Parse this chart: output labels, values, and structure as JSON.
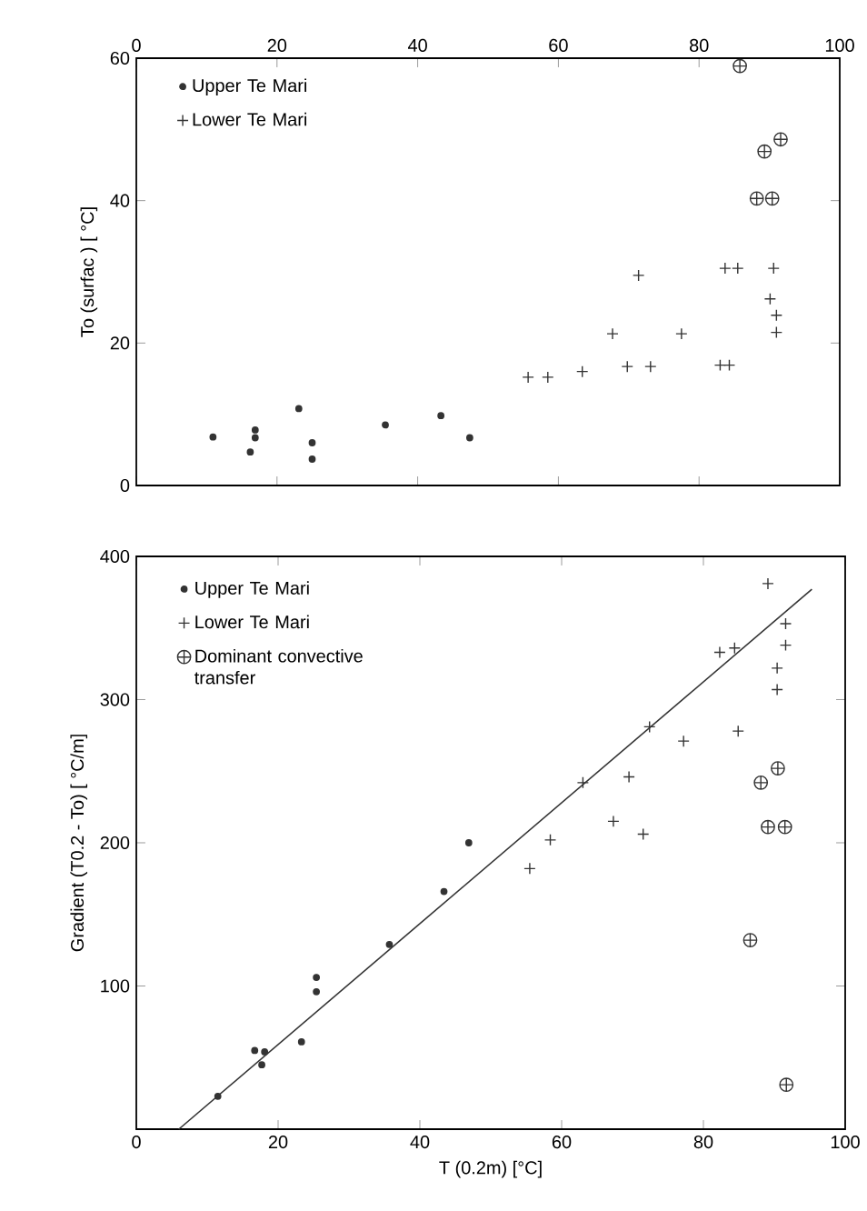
{
  "chart_data": [
    {
      "type": "scatter",
      "ylabel": "To (surfac ) [ °C]",
      "xlim": [
        0,
        100
      ],
      "ylim": [
        0,
        60
      ],
      "xticks": [
        0,
        20,
        40,
        60,
        80,
        100
      ],
      "yticks": [
        0,
        20,
        40,
        60
      ],
      "legend": "top left",
      "series": [
        {
          "name": "Upper Te Mari",
          "color": "#333333",
          "marker": "circle",
          "x": [
            10.9,
            16.2,
            16.9,
            16.9,
            23.1,
            25.0,
            25.0,
            35.4,
            43.3,
            47.4
          ],
          "values": [
            6.8,
            4.7,
            7.8,
            6.7,
            10.8,
            6.0,
            3.7,
            8.5,
            9.8,
            6.7
          ]
        },
        {
          "name": "Lower Te Mari",
          "color": "#333333",
          "marker": "cross",
          "x": [
            55.7,
            58.5,
            63.4,
            67.7,
            69.8,
            71.4,
            73.1,
            77.5,
            83.0,
            84.3,
            83.7,
            85.5,
            90.6,
            90.1,
            91.0,
            91.0
          ],
          "values": [
            15.2,
            15.2,
            16.0,
            21.3,
            16.7,
            29.5,
            16.7,
            21.3,
            16.9,
            16.9,
            30.5,
            30.5,
            30.5,
            26.2,
            23.9,
            21.5
          ]
        },
        {
          "color": "#333333",
          "x": [
            85.8,
            89.3,
            91.6,
            88.2,
            90.4
          ],
          "values": [
            58.9,
            46.9,
            48.6,
            40.3,
            40.3
          ]
        }
      ]
    },
    {
      "type": "scatter",
      "xlabel": "T (0.2m) [°C]",
      "ylabel": "Gradient (T0.2 - To) [ °C/m]",
      "xlim": [
        0,
        100
      ],
      "ylim": [
        0,
        400
      ],
      "xticks": [
        0,
        20,
        40,
        60,
        80,
        100
      ],
      "yticks": [
        {
          "value": 0,
          "label": null
        },
        100,
        200,
        300,
        400
      ],
      "legend": "top left",
      "series": [
        {
          "name": "Upper Te Mari",
          "color": "#333333",
          "marker": "circle",
          "x": [
            11.5,
            16.7,
            17.7,
            18.1,
            23.3,
            25.4,
            25.4,
            35.7,
            43.4,
            46.9
          ],
          "values": [
            23,
            55,
            45,
            54,
            61,
            106,
            96,
            129,
            166,
            200
          ]
        },
        {
          "name": "Lower Te Mari",
          "color": "#333333",
          "marker": "cross",
          "x": [
            89.1,
            91.6,
            91.6,
            90.4,
            90.4,
            82.3,
            84.4,
            84.9,
            77.2,
            72.4,
            63.0,
            69.5,
            67.3,
            71.5,
            58.4,
            55.5
          ],
          "values": [
            381,
            353,
            338,
            322,
            307,
            333,
            336,
            278,
            271,
            281,
            242,
            246,
            215,
            206,
            202,
            182
          ]
        },
        {
          "name": "Dominant convective transfer",
          "color": "#333333",
          "x": [
            88.1,
            90.5,
            89.1,
            91.5,
            86.6,
            91.7
          ],
          "values": [
            242,
            252,
            211,
            211,
            132,
            31
          ]
        },
        {
          "type": "line",
          "color": "#333333",
          "marker": "none",
          "x": [
            6.0,
            95.3
          ],
          "values": [
            0,
            377
          ]
        }
      ]
    }
  ]
}
